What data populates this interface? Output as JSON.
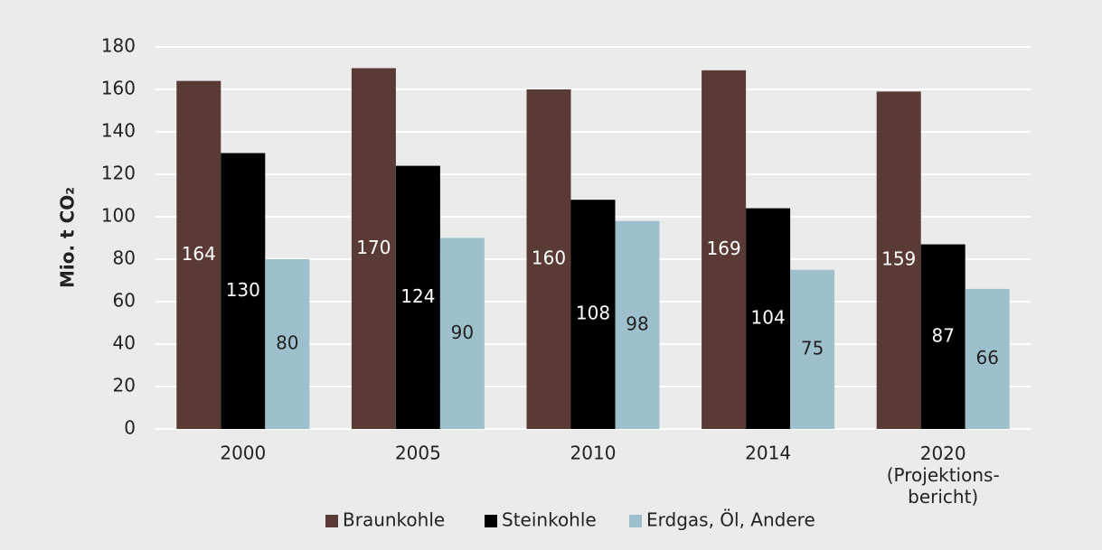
{
  "chart_data": {
    "type": "bar",
    "ylabel": "Mio. t CO₂",
    "categories": [
      "2000",
      "2005",
      "2010",
      "2014",
      "2020\n(Projektions-\nbericht)"
    ],
    "series": [
      {
        "name": "Braunkohle",
        "color": "#5a3a34",
        "values": [
          164,
          170,
          160,
          169,
          159
        ]
      },
      {
        "name": "Steinkohle",
        "color": "#000000",
        "values": [
          130,
          124,
          108,
          104,
          87
        ]
      },
      {
        "name": "Erdgas, Öl, Andere",
        "color": "#9ec0cd",
        "values": [
          80,
          90,
          98,
          75,
          66
        ]
      }
    ],
    "ylim": [
      0,
      180
    ],
    "yticks": [
      0,
      20,
      40,
      60,
      80,
      100,
      120,
      140,
      160,
      180
    ],
    "grid": true,
    "legend": "bottom"
  }
}
